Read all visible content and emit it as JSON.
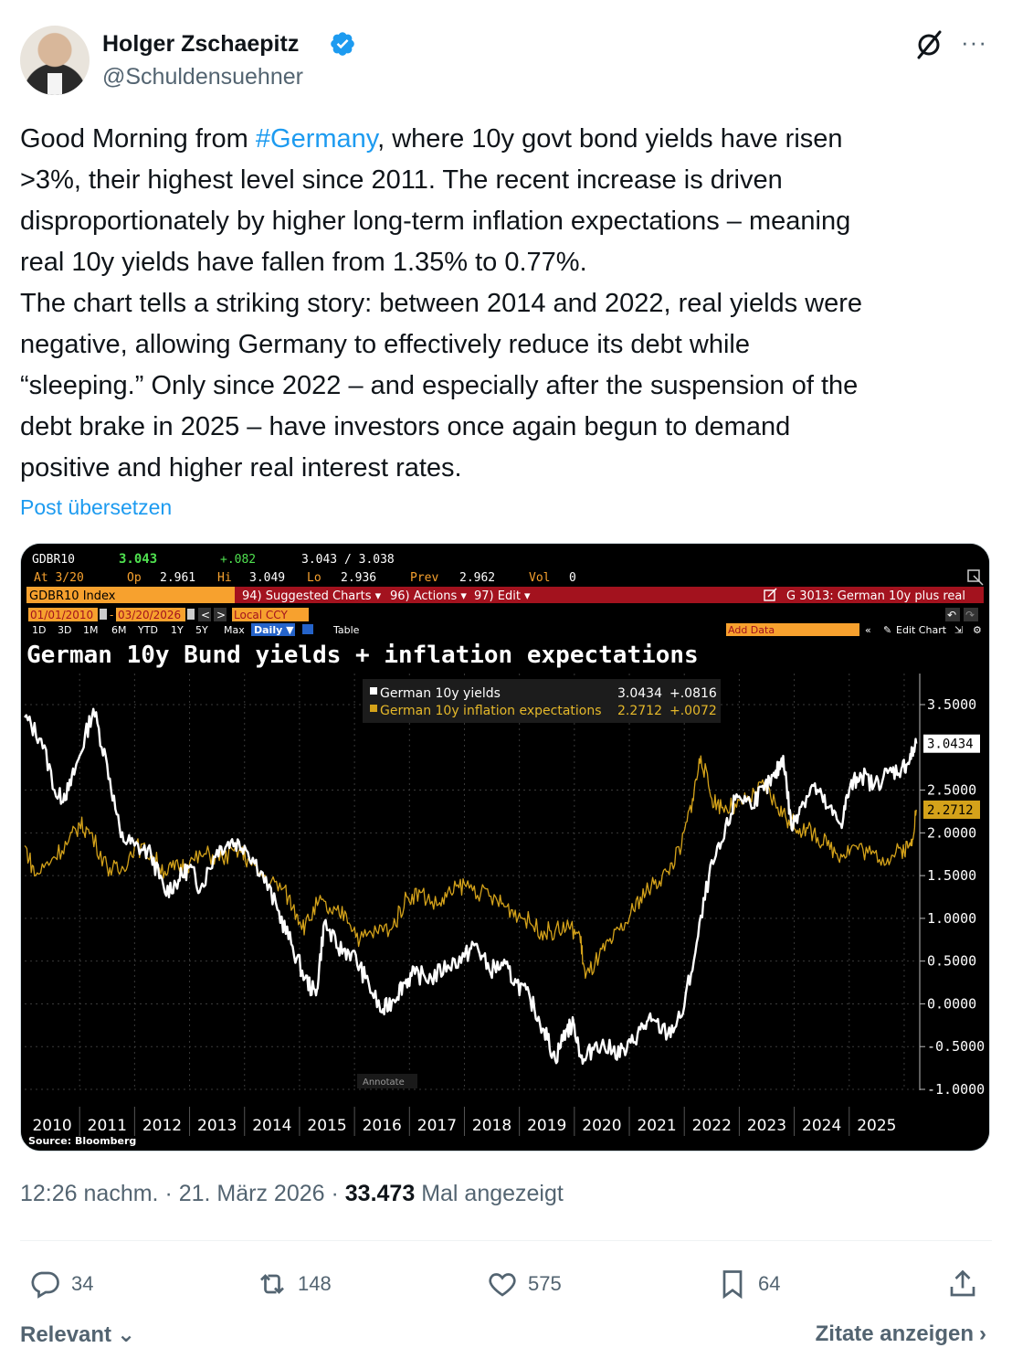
{
  "author": {
    "name": "Holger Zschaepitz",
    "handle": "@Schuldensuehner",
    "verified": true,
    "verified_color": "#1d9bf0"
  },
  "tweet": {
    "text_before": "Good Morning from ",
    "hashtag": "#Germany",
    "text_after": ", where 10y govt bond yields have risen\n>3%, their highest level since 2011. The recent increase is driven\ndisproportionately by higher long-term inflation expectations – meaning\nreal 10y yields have fallen from 1.35% to 0.77%.\nThe chart tells a striking story: between 2014 and 2022, real yields were\nnegative, allowing Germany to effectively reduce its debt while\n“sleeping.” Only since 2022 – and especially after the suspension of the\ndebt brake in 2025 – have investors once again begun to demand\npositive and higher real interest rates.",
    "translate_label": "Post übersetzen"
  },
  "terminal": {
    "ticker": "GDBR10",
    "last": "3.043",
    "change": "+.082",
    "bid_ask": "3.043 / 3.038",
    "at_label": "At 3/20",
    "op_label": "Op",
    "op": "2.961",
    "hi_label": "Hi",
    "hi": "3.049",
    "lo_label": "Lo",
    "lo": "2.936",
    "prev_label": "Prev",
    "prev": "2.962",
    "vol_label": "Vol",
    "vol": "0",
    "index_label": "GDBR10 Index",
    "suggested": "94) Suggested Charts ▾",
    "actions": "96) Actions ▾",
    "edit": "97) Edit ▾",
    "chart_id": "G 3013: German 10y plus real",
    "date_from": "01/01/2010",
    "date_to": "03/20/2026",
    "currency": "Local CCY",
    "periods": [
      "1D",
      "3D",
      "1M",
      "6M",
      "YTD",
      "1Y",
      "5Y",
      "Max"
    ],
    "frequency": "Daily ▼",
    "table_label": "Table",
    "add_data": "Add Data",
    "edit_chart": "Edit Chart",
    "annotate": "Annotate",
    "source": "Source: Bloomberg"
  },
  "chart_data": {
    "type": "line",
    "title": "German 10y Bund yields + inflation expectations",
    "xlabel": "",
    "ylabel": "",
    "x_ticks": [
      "2010",
      "2011",
      "2012",
      "2013",
      "2014",
      "2015",
      "2016",
      "2017",
      "2018",
      "2019",
      "2020",
      "2021",
      "2022",
      "2023",
      "2024",
      "2025"
    ],
    "y_ticks": [
      "3.5000",
      "2.5000",
      "2.0000",
      "1.5000",
      "1.0000",
      "0.5000",
      "0.0000",
      "-0.5000",
      "-1.0000"
    ],
    "ylim": [
      -1.0,
      3.5
    ],
    "xlim": [
      2010.0,
      2026.25
    ],
    "legend_position": "top-center",
    "grid": true,
    "series": [
      {
        "name": "German 10y yields",
        "last": "3.0434",
        "change": "+.0816",
        "color": "#ffffff",
        "points": [
          [
            2010.0,
            3.35
          ],
          [
            2010.3,
            3.1
          ],
          [
            2010.6,
            2.4
          ],
          [
            2010.8,
            2.5
          ],
          [
            2011.0,
            2.9
          ],
          [
            2011.25,
            3.45
          ],
          [
            2011.5,
            2.8
          ],
          [
            2011.75,
            1.95
          ],
          [
            2012.0,
            1.85
          ],
          [
            2012.3,
            1.75
          ],
          [
            2012.55,
            1.3
          ],
          [
            2012.8,
            1.45
          ],
          [
            2013.0,
            1.6
          ],
          [
            2013.2,
            1.35
          ],
          [
            2013.5,
            1.8
          ],
          [
            2013.75,
            1.9
          ],
          [
            2014.0,
            1.85
          ],
          [
            2014.3,
            1.55
          ],
          [
            2014.6,
            1.1
          ],
          [
            2014.85,
            0.7
          ],
          [
            2015.1,
            0.3
          ],
          [
            2015.3,
            0.1
          ],
          [
            2015.45,
            0.95
          ],
          [
            2015.7,
            0.65
          ],
          [
            2015.95,
            0.6
          ],
          [
            2016.2,
            0.3
          ],
          [
            2016.5,
            -0.1
          ],
          [
            2016.7,
            0.05
          ],
          [
            2016.9,
            0.25
          ],
          [
            2017.1,
            0.35
          ],
          [
            2017.4,
            0.3
          ],
          [
            2017.7,
            0.45
          ],
          [
            2018.0,
            0.55
          ],
          [
            2018.2,
            0.7
          ],
          [
            2018.45,
            0.4
          ],
          [
            2018.7,
            0.45
          ],
          [
            2018.95,
            0.25
          ],
          [
            2019.2,
            0.05
          ],
          [
            2019.45,
            -0.3
          ],
          [
            2019.65,
            -0.65
          ],
          [
            2019.85,
            -0.3
          ],
          [
            2020.0,
            -0.25
          ],
          [
            2020.15,
            -0.7
          ],
          [
            2020.4,
            -0.45
          ],
          [
            2020.7,
            -0.55
          ],
          [
            2020.95,
            -0.55
          ],
          [
            2021.2,
            -0.3
          ],
          [
            2021.4,
            -0.2
          ],
          [
            2021.7,
            -0.35
          ],
          [
            2021.95,
            -0.15
          ],
          [
            2022.2,
            0.6
          ],
          [
            2022.45,
            1.5
          ],
          [
            2022.7,
            1.9
          ],
          [
            2022.95,
            2.45
          ],
          [
            2023.2,
            2.35
          ],
          [
            2023.45,
            2.5
          ],
          [
            2023.65,
            2.65
          ],
          [
            2023.8,
            2.9
          ],
          [
            2023.95,
            2.05
          ],
          [
            2024.1,
            2.3
          ],
          [
            2024.35,
            2.55
          ],
          [
            2024.6,
            2.3
          ],
          [
            2024.85,
            2.1
          ],
          [
            2025.0,
            2.5
          ],
          [
            2025.2,
            2.7
          ],
          [
            2025.45,
            2.55
          ],
          [
            2025.7,
            2.7
          ],
          [
            2025.95,
            2.75
          ],
          [
            2026.1,
            2.85
          ],
          [
            2026.22,
            3.0434
          ]
        ]
      },
      {
        "name": "German 10y inflation expectations",
        "last": "2.2712",
        "change": "+.0072",
        "color": "#d4a21a",
        "points": [
          [
            2010.0,
            1.85
          ],
          [
            2010.2,
            1.5
          ],
          [
            2010.5,
            1.7
          ],
          [
            2010.8,
            1.9
          ],
          [
            2011.0,
            2.1
          ],
          [
            2011.2,
            2.0
          ],
          [
            2011.5,
            1.6
          ],
          [
            2011.75,
            1.55
          ],
          [
            2012.0,
            1.85
          ],
          [
            2012.3,
            1.75
          ],
          [
            2012.55,
            1.55
          ],
          [
            2012.8,
            1.6
          ],
          [
            2013.0,
            1.65
          ],
          [
            2013.3,
            1.75
          ],
          [
            2013.6,
            1.7
          ],
          [
            2013.9,
            1.8
          ],
          [
            2014.1,
            1.65
          ],
          [
            2014.4,
            1.45
          ],
          [
            2014.7,
            1.35
          ],
          [
            2014.95,
            1.05
          ],
          [
            2015.1,
            0.9
          ],
          [
            2015.35,
            1.2
          ],
          [
            2015.6,
            1.05
          ],
          [
            2015.85,
            1.05
          ],
          [
            2016.1,
            0.75
          ],
          [
            2016.4,
            0.85
          ],
          [
            2016.7,
            0.9
          ],
          [
            2016.95,
            1.25
          ],
          [
            2017.2,
            1.3
          ],
          [
            2017.5,
            1.15
          ],
          [
            2017.75,
            1.3
          ],
          [
            2018.0,
            1.4
          ],
          [
            2018.3,
            1.3
          ],
          [
            2018.6,
            1.2
          ],
          [
            2018.85,
            1.1
          ],
          [
            2019.1,
            1.0
          ],
          [
            2019.4,
            0.85
          ],
          [
            2019.65,
            0.85
          ],
          [
            2019.9,
            0.9
          ],
          [
            2020.1,
            0.8
          ],
          [
            2020.2,
            0.3
          ],
          [
            2020.45,
            0.55
          ],
          [
            2020.7,
            0.75
          ],
          [
            2020.95,
            0.95
          ],
          [
            2021.2,
            1.25
          ],
          [
            2021.45,
            1.4
          ],
          [
            2021.7,
            1.55
          ],
          [
            2021.95,
            1.85
          ],
          [
            2022.15,
            2.4
          ],
          [
            2022.3,
            2.9
          ],
          [
            2022.5,
            2.4
          ],
          [
            2022.7,
            2.3
          ],
          [
            2022.95,
            2.3
          ],
          [
            2023.2,
            2.4
          ],
          [
            2023.45,
            2.55
          ],
          [
            2023.7,
            2.3
          ],
          [
            2023.9,
            2.15
          ],
          [
            2024.1,
            2.05
          ],
          [
            2024.35,
            2.0
          ],
          [
            2024.6,
            1.85
          ],
          [
            2024.85,
            1.75
          ],
          [
            2025.1,
            1.85
          ],
          [
            2025.4,
            1.75
          ],
          [
            2025.7,
            1.7
          ],
          [
            2025.95,
            1.8
          ],
          [
            2026.12,
            1.85
          ],
          [
            2026.22,
            2.2712
          ]
        ]
      }
    ]
  },
  "meta": {
    "time": "12:26 nachm.",
    "date": "21. März 2026",
    "views": "33.473",
    "views_label": "Mal angezeigt"
  },
  "actions": {
    "replies": "34",
    "reposts": "148",
    "likes": "575",
    "bookmarks": "64"
  },
  "footer": {
    "sort_label": "Relevant",
    "quotes_label": "Zitate anzeigen"
  },
  "colors": {
    "text": "#0f1419",
    "secondary": "#536471",
    "link": "#1d9bf0",
    "bloomberg_orange": "#f7a12e",
    "bloomberg_red": "#a3121e",
    "bloomberg_green": "#4fe04f"
  }
}
